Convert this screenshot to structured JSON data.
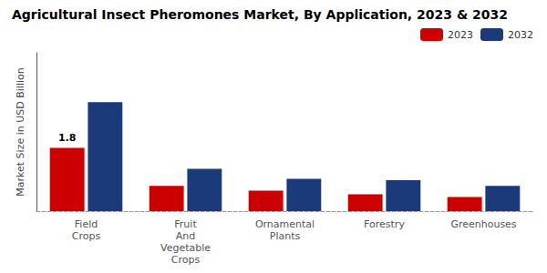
{
  "chart_data": {
    "type": "bar",
    "title": "Agricultural Insect Pheromones Market, By Application, 2023 & 2032",
    "ylabel": "Market Size in USD Billion",
    "categories": [
      "Field\nCrops",
      "Fruit\nAnd\nVegetable\nCrops",
      "Ornamental\nPlants",
      "Forestry",
      "Greenhouses"
    ],
    "series": [
      {
        "name": "2023",
        "color": "#cc0000",
        "values": [
          1.8,
          0.72,
          0.58,
          0.48,
          0.4
        ]
      },
      {
        "name": "2032",
        "color": "#1a3a7a",
        "values": [
          3.1,
          1.2,
          0.92,
          0.88,
          0.72
        ]
      }
    ],
    "annotations": [
      {
        "text": "1.8",
        "x": "Field\nCrops",
        "y": 1.8,
        "series": "2023"
      }
    ],
    "ylim": [
      0,
      4.5
    ],
    "tick_labels": "x",
    "grid": false,
    "legend": "upper right"
  }
}
